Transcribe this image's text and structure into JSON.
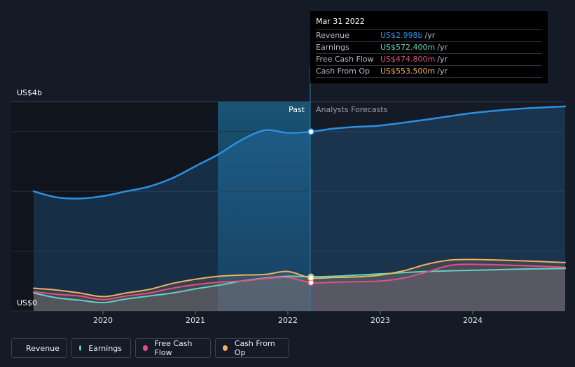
{
  "chart_data": {
    "type": "line",
    "x_ticks": [
      "2020",
      "2021",
      "2022",
      "2023",
      "2024"
    ],
    "y_axis": {
      "top_label": "US$4b",
      "bottom_label": "US$0",
      "ylim": [
        0,
        3.5
      ]
    },
    "regions": {
      "past_label": "Past",
      "forecast_label": "Analysts Forecasts"
    },
    "series": [
      {
        "name": "Revenue",
        "color": "#2d8fe0",
        "points": [
          [
            2019.25,
            2.0
          ],
          [
            2019.5,
            1.9
          ],
          [
            2019.75,
            1.88
          ],
          [
            2020.0,
            1.92
          ],
          [
            2020.25,
            2.0
          ],
          [
            2020.5,
            2.08
          ],
          [
            2020.75,
            2.22
          ],
          [
            2021.0,
            2.42
          ],
          [
            2021.25,
            2.62
          ],
          [
            2021.5,
            2.86
          ],
          [
            2021.75,
            3.02
          ],
          [
            2022.0,
            2.98
          ],
          [
            2022.25,
            2.998
          ],
          [
            2022.5,
            3.05
          ],
          [
            2022.75,
            3.08
          ],
          [
            2023.0,
            3.1
          ],
          [
            2023.5,
            3.2
          ],
          [
            2024.0,
            3.31
          ],
          [
            2024.5,
            3.38
          ],
          [
            2025.0,
            3.42
          ]
        ]
      },
      {
        "name": "Earnings",
        "color": "#5fd3c0",
        "points": [
          [
            2019.25,
            0.3
          ],
          [
            2019.5,
            0.22
          ],
          [
            2019.75,
            0.18
          ],
          [
            2020.0,
            0.14
          ],
          [
            2020.25,
            0.2
          ],
          [
            2020.5,
            0.25
          ],
          [
            2020.75,
            0.3
          ],
          [
            2021.0,
            0.37
          ],
          [
            2021.25,
            0.43
          ],
          [
            2021.5,
            0.5
          ],
          [
            2021.75,
            0.55
          ],
          [
            2022.0,
            0.58
          ],
          [
            2022.25,
            0.5724
          ],
          [
            2022.5,
            0.58
          ],
          [
            2022.75,
            0.6
          ],
          [
            2023.0,
            0.62
          ],
          [
            2023.5,
            0.66
          ],
          [
            2024.0,
            0.68
          ],
          [
            2024.5,
            0.7
          ],
          [
            2025.0,
            0.71
          ]
        ]
      },
      {
        "name": "Free Cash Flow",
        "color": "#e0508a",
        "points": [
          [
            2019.25,
            0.32
          ],
          [
            2019.5,
            0.28
          ],
          [
            2019.75,
            0.25
          ],
          [
            2020.0,
            0.19
          ],
          [
            2020.25,
            0.25
          ],
          [
            2020.5,
            0.3
          ],
          [
            2020.75,
            0.38
          ],
          [
            2021.0,
            0.44
          ],
          [
            2021.25,
            0.48
          ],
          [
            2021.5,
            0.5
          ],
          [
            2021.75,
            0.54
          ],
          [
            2022.0,
            0.56
          ],
          [
            2022.25,
            0.4748
          ],
          [
            2022.5,
            0.48
          ],
          [
            2022.75,
            0.49
          ],
          [
            2023.0,
            0.5
          ],
          [
            2023.25,
            0.55
          ],
          [
            2023.5,
            0.65
          ],
          [
            2023.75,
            0.76
          ],
          [
            2024.0,
            0.78
          ],
          [
            2024.5,
            0.76
          ],
          [
            2025.0,
            0.73
          ]
        ]
      },
      {
        "name": "Cash From Op",
        "color": "#f0b060",
        "points": [
          [
            2019.25,
            0.38
          ],
          [
            2019.5,
            0.35
          ],
          [
            2019.75,
            0.3
          ],
          [
            2020.0,
            0.24
          ],
          [
            2020.25,
            0.3
          ],
          [
            2020.5,
            0.36
          ],
          [
            2020.75,
            0.46
          ],
          [
            2021.0,
            0.53
          ],
          [
            2021.25,
            0.58
          ],
          [
            2021.5,
            0.6
          ],
          [
            2021.75,
            0.61
          ],
          [
            2022.0,
            0.66
          ],
          [
            2022.25,
            0.5535
          ],
          [
            2022.5,
            0.56
          ],
          [
            2022.75,
            0.57
          ],
          [
            2023.0,
            0.6
          ],
          [
            2023.25,
            0.67
          ],
          [
            2023.5,
            0.78
          ],
          [
            2023.75,
            0.85
          ],
          [
            2024.0,
            0.86
          ],
          [
            2024.5,
            0.84
          ],
          [
            2025.0,
            0.81
          ]
        ]
      }
    ],
    "highlight": {
      "x": 2022.25
    }
  },
  "tooltip": {
    "date": "Mar 31 2022",
    "rows": [
      {
        "label": "Revenue",
        "value": "US$2.998b",
        "unit": "/yr",
        "color": "#2d8fe0"
      },
      {
        "label": "Earnings",
        "value": "US$572.400m",
        "unit": "/yr",
        "color": "#5fd3c0"
      },
      {
        "label": "Free Cash Flow",
        "value": "US$474.800m",
        "unit": "/yr",
        "color": "#e0508a"
      },
      {
        "label": "Cash From Op",
        "value": "US$553.500m",
        "unit": "/yr",
        "color": "#f0b060"
      }
    ]
  },
  "legend": [
    {
      "label": "Revenue",
      "color": "#2d8fe0"
    },
    {
      "label": "Earnings",
      "color": "#5fd3c0"
    },
    {
      "label": "Free Cash Flow",
      "color": "#e0508a"
    },
    {
      "label": "Cash From Op",
      "color": "#f0b060"
    }
  ]
}
